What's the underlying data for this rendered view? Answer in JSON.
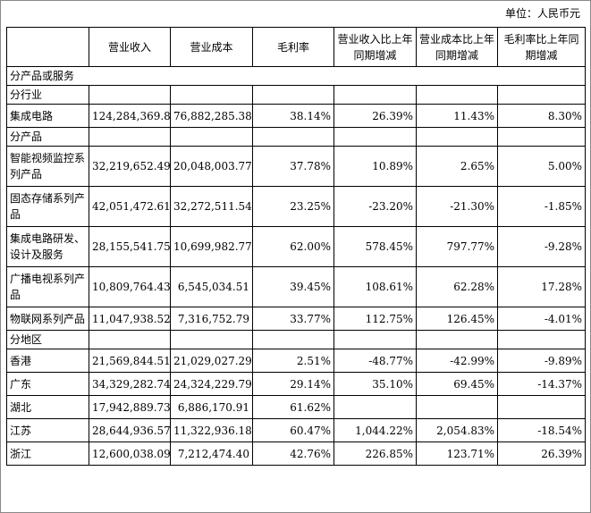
{
  "unit_label": "单位：人民币元",
  "headers": {
    "blank": "",
    "revenue": "营业收入",
    "cost": "营业成本",
    "margin": "毛利率",
    "revenue_yoy": "营业收入比上年同期增减",
    "cost_yoy": "营业成本比上年同期增减",
    "margin_yoy": "毛利率比上年同期增减"
  },
  "sections": {
    "by_product_or_service": "分产品或服务",
    "by_industry": "分行业",
    "by_product": "分产品",
    "by_region": "分地区"
  },
  "industry_rows": [
    {
      "name": "集成电路",
      "revenue": "124,284,369.80",
      "cost": "76,882,285.38",
      "margin": "38.14%",
      "revenue_yoy": "26.39%",
      "cost_yoy": "11.43%",
      "margin_yoy": "8.30%"
    }
  ],
  "product_rows": [
    {
      "name": "智能视频监控系列产品",
      "revenue": "32,219,652.49",
      "cost": "20,048,003.77",
      "margin": "37.78%",
      "revenue_yoy": "10.89%",
      "cost_yoy": "2.65%",
      "margin_yoy": "5.00%"
    },
    {
      "name": "固态存储系列产品",
      "revenue": "42,051,472.61",
      "cost": "32,272,511.54",
      "margin": "23.25%",
      "revenue_yoy": "-23.20%",
      "cost_yoy": "-21.30%",
      "margin_yoy": "-1.85%"
    },
    {
      "name": "集成电路研发、设计及服务",
      "revenue": "28,155,541.75",
      "cost": "10,699,982.77",
      "margin": "62.00%",
      "revenue_yoy": "578.45%",
      "cost_yoy": "797.77%",
      "margin_yoy": "-9.28%"
    },
    {
      "name": "广播电视系列产品",
      "revenue": "10,809,764.43",
      "cost": "6,545,034.51",
      "margin": "39.45%",
      "revenue_yoy": "108.61%",
      "cost_yoy": "62.28%",
      "margin_yoy": "17.28%"
    },
    {
      "name": "物联网系列产品",
      "revenue": "11,047,938.52",
      "cost": "7,316,752.79",
      "margin": "33.77%",
      "revenue_yoy": "112.75%",
      "cost_yoy": "126.45%",
      "margin_yoy": "-4.01%"
    }
  ],
  "region_rows": [
    {
      "name": "香港",
      "revenue": "21,569,844.51",
      "cost": "21,029,027.29",
      "margin": "2.51%",
      "revenue_yoy": "-48.77%",
      "cost_yoy": "-42.99%",
      "margin_yoy": "-9.89%"
    },
    {
      "name": "广东",
      "revenue": "34,329,282.74",
      "cost": "24,324,229.79",
      "margin": "29.14%",
      "revenue_yoy": "35.10%",
      "cost_yoy": "69.45%",
      "margin_yoy": "-14.37%"
    },
    {
      "name": "湖北",
      "revenue": "17,942,889.73",
      "cost": "6,886,170.91",
      "margin": "61.62%",
      "revenue_yoy": "",
      "cost_yoy": "",
      "margin_yoy": ""
    },
    {
      "name": "江苏",
      "revenue": "28,644,936.57",
      "cost": "11,322,936.18",
      "margin": "60.47%",
      "revenue_yoy": "1,044.22%",
      "cost_yoy": "2,054.83%",
      "margin_yoy": "-18.54%"
    },
    {
      "name": "浙江",
      "revenue": "12,600,038.09",
      "cost": "7,212,474.40",
      "margin": "42.76%",
      "revenue_yoy": "226.85%",
      "cost_yoy": "123.71%",
      "margin_yoy": "26.39%"
    }
  ]
}
